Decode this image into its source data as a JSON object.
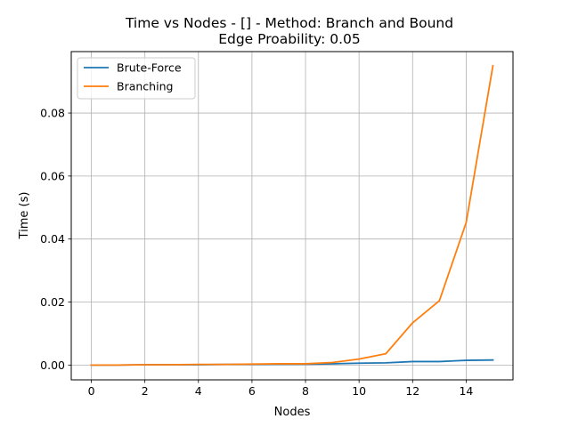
{
  "chart_data": {
    "type": "line",
    "title_line1": "Time vs Nodes - [] - Method: Branch and Bound",
    "title_line2": "Edge Proability: 0.05",
    "xlabel": "Nodes",
    "ylabel": "Time (s)",
    "xlim": [
      -0.75,
      15.75
    ],
    "ylim": [
      -0.0047,
      0.0995
    ],
    "xticks": [
      0,
      2,
      4,
      6,
      8,
      10,
      12,
      14
    ],
    "xtick_labels": [
      "0",
      "2",
      "4",
      "6",
      "8",
      "10",
      "12",
      "14"
    ],
    "yticks": [
      0.0,
      0.02,
      0.04,
      0.06,
      0.08
    ],
    "ytick_labels": [
      "0.00",
      "0.02",
      "0.04",
      "0.06",
      "0.08"
    ],
    "grid": true,
    "legend_position": "upper-left",
    "x": [
      0,
      1,
      2,
      3,
      4,
      5,
      6,
      7,
      8,
      9,
      10,
      11,
      12,
      13,
      14,
      15
    ],
    "series": [
      {
        "name": "Brute-Force",
        "color": "#1f77b4",
        "values": [
          0.0,
          0.0,
          0.0001,
          0.0001,
          0.0001,
          0.0002,
          0.0002,
          0.0003,
          0.0003,
          0.0004,
          0.0006,
          0.0007,
          0.0011,
          0.0011,
          0.0015,
          0.0016
        ]
      },
      {
        "name": "Branching",
        "color": "#ff7f0e",
        "values": [
          0.0,
          0.0,
          0.0001,
          0.0001,
          0.0002,
          0.0002,
          0.0003,
          0.0004,
          0.0004,
          0.0008,
          0.0019,
          0.0036,
          0.0134,
          0.0204,
          0.0452,
          0.095
        ]
      }
    ]
  }
}
